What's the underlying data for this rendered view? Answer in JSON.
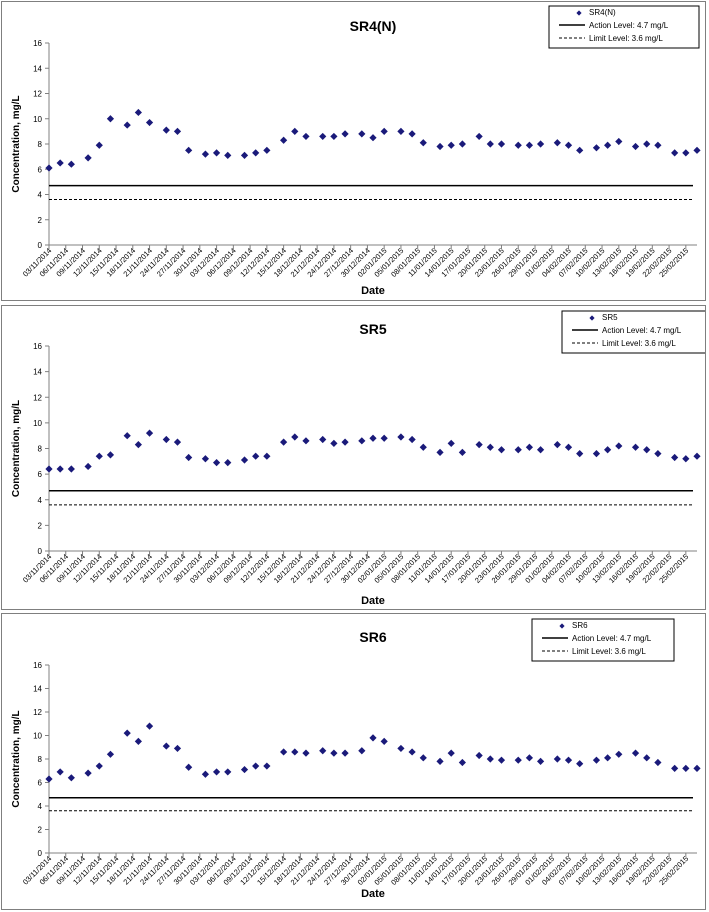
{
  "colors": {
    "marker": "#1a1a7a",
    "axis": "#808080",
    "lines": "#000000"
  },
  "chart_data": [
    {
      "type": "scatter",
      "title": "SR4(N)",
      "xlabel": "Date",
      "ylabel": "Concentration, mg/L",
      "ylim": [
        0,
        16
      ],
      "yticks": [
        "0",
        "2",
        "4",
        "6",
        "8",
        "10",
        "12",
        "14",
        "16"
      ],
      "xlim": [
        "03/11/2014",
        "25/02/2015"
      ],
      "xticks": [
        "03/11/2014",
        "06/11/2014",
        "09/11/2014",
        "12/11/2014",
        "15/11/2014",
        "18/11/2014",
        "21/11/2014",
        "24/11/2014",
        "27/11/2014",
        "30/11/2014",
        "03/12/2014",
        "06/12/2014",
        "09/12/2014",
        "12/12/2014",
        "15/12/2014",
        "18/12/2014",
        "21/12/2014",
        "24/12/2014",
        "27/12/2014",
        "30/12/2014",
        "02/01/2015",
        "05/01/2015",
        "08/01/2015",
        "11/01/2015",
        "14/01/2015",
        "17/01/2015",
        "20/01/2015",
        "23/01/2015",
        "26/01/2015",
        "29/01/2015",
        "01/02/2015",
        "04/02/2015",
        "07/02/2015",
        "10/02/2015",
        "13/02/2015",
        "16/02/2015",
        "19/02/2015",
        "22/02/2015",
        "25/02/2015"
      ],
      "legend": {
        "position": "top-right",
        "entries": [
          "SR4(N)",
          "Action Level: 4.7 mg/L",
          "Limit Level: 3.6 mg/L"
        ]
      },
      "series": [
        {
          "name": "SR4(N)",
          "x": [
            "03/11/2014",
            "05/11/2014",
            "07/11/2014",
            "10/11/2014",
            "12/11/2014",
            "14/11/2014",
            "17/11/2014",
            "19/11/2014",
            "21/11/2014",
            "24/11/2014",
            "26/11/2014",
            "28/11/2014",
            "01/12/2014",
            "03/12/2014",
            "05/12/2014",
            "08/12/2014",
            "10/12/2014",
            "12/12/2014",
            "15/12/2014",
            "17/12/2014",
            "19/12/2014",
            "22/12/2014",
            "24/12/2014",
            "26/12/2014",
            "29/12/2014",
            "31/12/2014",
            "02/01/2015",
            "05/01/2015",
            "07/01/2015",
            "09/01/2015",
            "12/01/2015",
            "14/01/2015",
            "16/01/2015",
            "19/01/2015",
            "21/01/2015",
            "23/01/2015",
            "26/01/2015",
            "28/01/2015",
            "30/01/2015",
            "02/02/2015",
            "04/02/2015",
            "06/02/2015",
            "09/02/2015",
            "11/02/2015",
            "13/02/2015",
            "16/02/2015",
            "18/02/2015",
            "20/02/2015",
            "23/02/2015",
            "25/02/2015",
            "27/02/2015"
          ],
          "y": [
            6.1,
            6.5,
            6.4,
            6.9,
            7.9,
            10.0,
            9.5,
            10.5,
            9.7,
            9.1,
            9.0,
            7.5,
            7.2,
            7.3,
            7.1,
            7.1,
            7.3,
            7.5,
            8.3,
            9.0,
            8.6,
            8.6,
            8.6,
            8.8,
            8.8,
            8.5,
            9.0,
            9.0,
            8.8,
            8.1,
            7.8,
            7.9,
            8.0,
            8.6,
            8.0,
            8.0,
            7.9,
            7.9,
            8.0,
            8.1,
            7.9,
            7.5,
            7.7,
            7.9,
            8.2,
            7.8,
            8.0,
            7.9,
            7.3,
            7.3,
            7.5
          ]
        },
        {
          "name": "Action Level: 4.7 mg/L",
          "level": 4.7
        },
        {
          "name": "Limit Level: 3.6 mg/L",
          "level": 3.6
        }
      ]
    },
    {
      "type": "scatter",
      "title": "SR5",
      "xlabel": "Date",
      "ylabel": "Concentration, mg/L",
      "ylim": [
        0,
        16
      ],
      "yticks": [
        "0",
        "2",
        "4",
        "6",
        "8",
        "10",
        "12",
        "14",
        "16"
      ],
      "xlim": [
        "03/11/2014",
        "25/02/2015"
      ],
      "xticks": [
        "03/11/2014",
        "06/11/2014",
        "09/11/2014",
        "12/11/2014",
        "15/11/2014",
        "18/11/2014",
        "21/11/2014",
        "24/11/2014",
        "27/11/2014",
        "30/11/2014",
        "03/12/2014",
        "06/12/2014",
        "09/12/2014",
        "12/12/2014",
        "15/12/2014",
        "18/12/2014",
        "21/12/2014",
        "24/12/2014",
        "27/12/2014",
        "30/12/2014",
        "02/01/2015",
        "05/01/2015",
        "08/01/2015",
        "11/01/2015",
        "14/01/2015",
        "17/01/2015",
        "20/01/2015",
        "23/01/2015",
        "26/01/2015",
        "29/01/2015",
        "01/02/2015",
        "04/02/2015",
        "07/02/2015",
        "10/02/2015",
        "13/02/2015",
        "16/02/2015",
        "19/02/2015",
        "22/02/2015",
        "25/02/2015"
      ],
      "legend": {
        "position": "top-right",
        "entries": [
          "SR5",
          "Action Level: 4.7 mg/L",
          "Limit Level: 3.6 mg/L"
        ]
      },
      "series": [
        {
          "name": "SR5",
          "x": [
            "03/11/2014",
            "05/11/2014",
            "07/11/2014",
            "10/11/2014",
            "12/11/2014",
            "14/11/2014",
            "17/11/2014",
            "19/11/2014",
            "21/11/2014",
            "24/11/2014",
            "26/11/2014",
            "28/11/2014",
            "01/12/2014",
            "03/12/2014",
            "05/12/2014",
            "08/12/2014",
            "10/12/2014",
            "12/12/2014",
            "15/12/2014",
            "17/12/2014",
            "19/12/2014",
            "22/12/2014",
            "24/12/2014",
            "26/12/2014",
            "29/12/2014",
            "31/12/2014",
            "02/01/2015",
            "05/01/2015",
            "07/01/2015",
            "09/01/2015",
            "12/01/2015",
            "14/01/2015",
            "16/01/2015",
            "19/01/2015",
            "21/01/2015",
            "23/01/2015",
            "26/01/2015",
            "28/01/2015",
            "30/01/2015",
            "02/02/2015",
            "04/02/2015",
            "06/02/2015",
            "09/02/2015",
            "11/02/2015",
            "13/02/2015",
            "16/02/2015",
            "18/02/2015",
            "20/02/2015",
            "23/02/2015",
            "25/02/2015",
            "27/02/2015"
          ],
          "y": [
            6.4,
            6.4,
            6.4,
            6.6,
            7.4,
            7.5,
            9.0,
            8.3,
            9.2,
            8.7,
            8.5,
            7.3,
            7.2,
            6.9,
            6.9,
            7.1,
            7.4,
            7.4,
            8.5,
            8.9,
            8.6,
            8.7,
            8.4,
            8.5,
            8.6,
            8.8,
            8.8,
            8.9,
            8.7,
            8.1,
            7.7,
            8.4,
            7.7,
            8.3,
            8.1,
            7.9,
            7.9,
            8.1,
            7.9,
            8.3,
            8.1,
            7.6,
            7.6,
            7.9,
            8.2,
            8.1,
            7.9,
            7.6,
            7.3,
            7.2,
            7.4
          ]
        },
        {
          "name": "Action Level: 4.7 mg/L",
          "level": 4.7
        },
        {
          "name": "Limit Level: 3.6 mg/L",
          "level": 3.6
        }
      ]
    },
    {
      "type": "scatter",
      "title": "SR6",
      "xlabel": "Date",
      "ylabel": "Concentration, mg/L",
      "ylim": [
        0,
        16
      ],
      "yticks": [
        "0",
        "2",
        "4",
        "6",
        "8",
        "10",
        "12",
        "14",
        "16"
      ],
      "xlim": [
        "03/11/2014",
        "25/02/2015"
      ],
      "xticks": [
        "03/11/2014",
        "06/11/2014",
        "09/11/2014",
        "12/11/2014",
        "15/11/2014",
        "18/11/2014",
        "21/11/2014",
        "24/11/2014",
        "27/11/2014",
        "30/11/2014",
        "03/12/2014",
        "06/12/2014",
        "09/12/2014",
        "12/12/2014",
        "15/12/2014",
        "18/12/2014",
        "21/12/2014",
        "24/12/2014",
        "27/12/2014",
        "30/12/2014",
        "02/01/2015",
        "05/01/2015",
        "08/01/2015",
        "11/01/2015",
        "14/01/2015",
        "17/01/2015",
        "20/01/2015",
        "23/01/2015",
        "26/01/2015",
        "29/01/2015",
        "01/02/2015",
        "04/02/2015",
        "07/02/2015",
        "10/02/2015",
        "13/02/2015",
        "16/02/2015",
        "19/02/2015",
        "22/02/2015",
        "25/02/2015"
      ],
      "legend": {
        "position": "top-right",
        "entries": [
          "SR6",
          "Action Level: 4.7 mg/L",
          "Limit Level: 3.6 mg/L"
        ]
      },
      "series": [
        {
          "name": "SR6",
          "x": [
            "03/11/2014",
            "05/11/2014",
            "07/11/2014",
            "10/11/2014",
            "12/11/2014",
            "14/11/2014",
            "17/11/2014",
            "19/11/2014",
            "21/11/2014",
            "24/11/2014",
            "26/11/2014",
            "28/11/2014",
            "01/12/2014",
            "03/12/2014",
            "05/12/2014",
            "08/12/2014",
            "10/12/2014",
            "12/12/2014",
            "15/12/2014",
            "17/12/2014",
            "19/12/2014",
            "22/12/2014",
            "24/12/2014",
            "26/12/2014",
            "29/12/2014",
            "31/12/2014",
            "02/01/2015",
            "05/01/2015",
            "07/01/2015",
            "09/01/2015",
            "12/01/2015",
            "14/01/2015",
            "16/01/2015",
            "19/01/2015",
            "21/01/2015",
            "23/01/2015",
            "26/01/2015",
            "28/01/2015",
            "30/01/2015",
            "02/02/2015",
            "04/02/2015",
            "06/02/2015",
            "09/02/2015",
            "11/02/2015",
            "13/02/2015",
            "16/02/2015",
            "18/02/2015",
            "20/02/2015",
            "23/02/2015",
            "25/02/2015",
            "27/02/2015"
          ],
          "y": [
            6.3,
            6.9,
            6.4,
            6.8,
            7.4,
            8.4,
            10.2,
            9.5,
            10.8,
            9.1,
            8.9,
            7.3,
            6.7,
            6.9,
            6.9,
            7.1,
            7.4,
            7.4,
            8.6,
            8.6,
            8.5,
            8.7,
            8.5,
            8.5,
            8.7,
            9.8,
            9.5,
            8.9,
            8.6,
            8.1,
            7.8,
            8.5,
            7.7,
            8.3,
            8.0,
            7.9,
            7.9,
            8.1,
            7.8,
            8.0,
            7.9,
            7.6,
            7.9,
            8.1,
            8.4,
            8.5,
            8.1,
            7.7,
            7.2,
            7.2,
            7.2
          ]
        },
        {
          "name": "Action Level: 4.7 mg/L",
          "level": 4.7
        },
        {
          "name": "Limit Level: 3.6 mg/L",
          "level": 3.6
        }
      ]
    }
  ]
}
